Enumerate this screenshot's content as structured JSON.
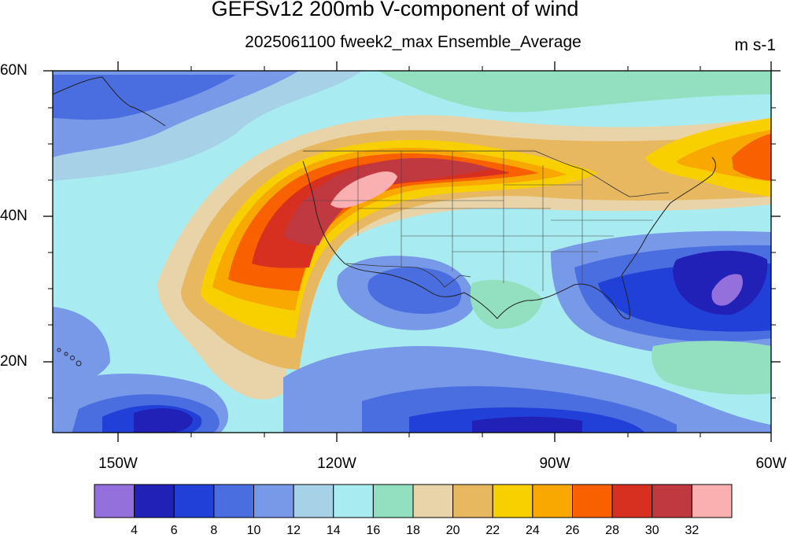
{
  "title": "GEFSv12 200mb V-component of wind",
  "subtitle": "2025061100 fweek2_max Ensemble_Average",
  "units": "m s-1",
  "lat_labels": [
    "60N",
    "40N",
    "20N"
  ],
  "lon_labels": [
    "150W",
    "120W",
    "90W",
    "60W"
  ],
  "colorbar": {
    "colors": [
      "#9370db",
      "#2121b8",
      "#2040d8",
      "#4a6ee0",
      "#7898e8",
      "#a6d1e6",
      "#a8ecf2",
      "#92e0c0",
      "#e8d4a8",
      "#e8b860",
      "#f8d000",
      "#f8a800",
      "#f86000",
      "#d83020",
      "#c03840",
      "#fab0b0"
    ],
    "labels": [
      "4",
      "6",
      "8",
      "10",
      "12",
      "14",
      "16",
      "18",
      "20",
      "22",
      "24",
      "26",
      "28",
      "30",
      "32"
    ]
  }
}
